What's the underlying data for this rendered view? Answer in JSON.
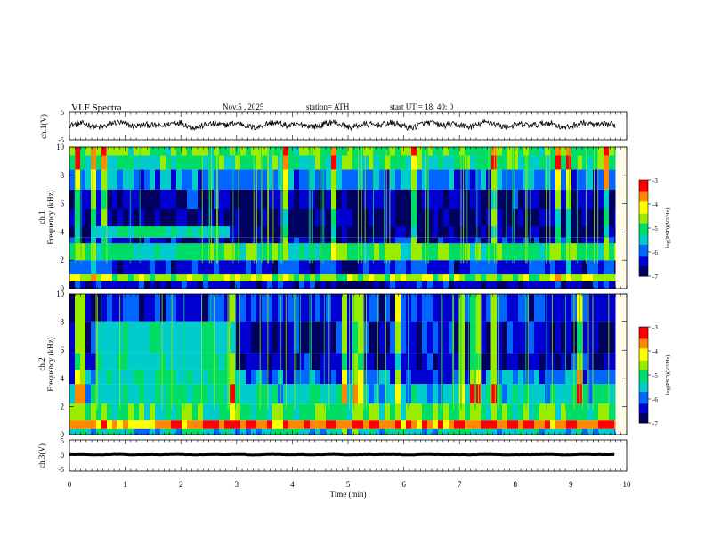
{
  "header": {
    "title": "VLF Spectra",
    "date": "Nov.5 , 2025",
    "station": "station= ATH",
    "start_ut": "start UT = 18: 40: 0"
  },
  "chart_data": [
    {
      "type": "line",
      "panel": "ch1-waveform",
      "ylabel": "ch.1(V)",
      "ylim": [
        -5,
        5
      ],
      "yticks": [
        "5",
        "-5"
      ],
      "x_range_min": [
        0,
        9.8
      ],
      "series": [
        {
          "name": "ch.1",
          "mean": 0.4,
          "amplitude": 1.6,
          "description": "noisy broadband waveform"
        }
      ]
    },
    {
      "type": "heatmap",
      "panel": "ch1-spectrogram",
      "ylabel_top": "ch.1",
      "ylabel": "Frequency (kHz)",
      "ylim": [
        0,
        10
      ],
      "yticks": [
        "0",
        "2",
        "4",
        "6",
        "8",
        "10"
      ],
      "x_range_min": [
        0,
        9.8
      ],
      "colorbar": {
        "label": "log(PSD)(V²/Hz)",
        "range": [
          -7,
          -3
        ],
        "ticks": [
          "-3",
          "-4",
          "-5",
          "-6",
          "-7"
        ]
      },
      "bands": [
        {
          "kHz": [
            0,
            0.5
          ],
          "level": -6.4
        },
        {
          "kHz": [
            0.5,
            1.0
          ],
          "level": -4.6
        },
        {
          "kHz": [
            1.0,
            2.0
          ],
          "level": -6.2
        },
        {
          "kHz": [
            2.0,
            3.2
          ],
          "level": -5.0
        },
        {
          "kHz": [
            3.2,
            3.6
          ],
          "level": -6.4
        },
        {
          "kHz": [
            3.6,
            4.4
          ],
          "level": -6.8
        },
        {
          "kHz": [
            4.4,
            5.6
          ],
          "level": -6.7
        },
        {
          "kHz": [
            5.6,
            7.0
          ],
          "level": -6.5
        },
        {
          "kHz": [
            7.0,
            8.4
          ],
          "level": -5.8
        },
        {
          "kHz": [
            8.4,
            9.4
          ],
          "level": -5.1
        },
        {
          "kHz": [
            9.4,
            10
          ],
          "level": -4.8
        }
      ],
      "features": [
        {
          "t_min": [
            0.4,
            2.8
          ],
          "kHz": [
            3.4,
            4.4
          ],
          "level": -5.2
        }
      ]
    },
    {
      "type": "heatmap",
      "panel": "ch2-spectrogram",
      "ylabel_top": "ch.2",
      "ylabel": "Frequency (kHz)",
      "ylim": [
        0,
        10
      ],
      "yticks": [
        "0",
        "2",
        "4",
        "6",
        "8",
        "10"
      ],
      "x_range_min": [
        0,
        9.8
      ],
      "colorbar": {
        "label": "log(PSD)(V²/Hz)",
        "range": [
          -7,
          -3
        ],
        "ticks": [
          "-3",
          "-4",
          "-5",
          "-6",
          "-7"
        ]
      },
      "bands": [
        {
          "kHz": [
            0,
            0.4
          ],
          "level": -5.4
        },
        {
          "kHz": [
            0.4,
            1.0
          ],
          "level": -3.6
        },
        {
          "kHz": [
            1.0,
            2.2
          ],
          "level": -4.9
        },
        {
          "kHz": [
            2.2,
            3.6
          ],
          "level": -5.3
        },
        {
          "kHz": [
            3.6,
            4.6
          ],
          "level": -5.9
        },
        {
          "kHz": [
            4.6,
            5.8
          ],
          "level": -6.5
        },
        {
          "kHz": [
            5.8,
            8.0
          ],
          "level": -6.4
        },
        {
          "kHz": [
            8.0,
            10
          ],
          "level": -6.2
        }
      ],
      "features": [
        {
          "t_min": [
            0.4,
            2.8
          ],
          "kHz": [
            3.4,
            9.8
          ],
          "level": -5.3
        }
      ]
    },
    {
      "type": "line",
      "panel": "ch3-waveform",
      "ylabel": "ch.3(V)",
      "ylim": [
        -5,
        5
      ],
      "yticks": [
        "5",
        "0",
        "-5"
      ],
      "x_range_min": [
        0,
        9.8
      ],
      "series": [
        {
          "name": "ch.3",
          "mean": 0.3,
          "amplitude": 0.15,
          "description": "nearly flat trace"
        }
      ]
    }
  ],
  "xaxis": {
    "label": "Time (min)",
    "ticks": [
      "0",
      "1",
      "2",
      "3",
      "4",
      "5",
      "6",
      "7",
      "8",
      "9",
      "10"
    ],
    "range": [
      0,
      10
    ]
  },
  "colors": {
    "scale": [
      "#000060",
      "#0000d0",
      "#0066ff",
      "#00cccc",
      "#00dd66",
      "#99ee00",
      "#ffff00",
      "#ff8800",
      "#ff0000",
      "#ffffff"
    ]
  }
}
